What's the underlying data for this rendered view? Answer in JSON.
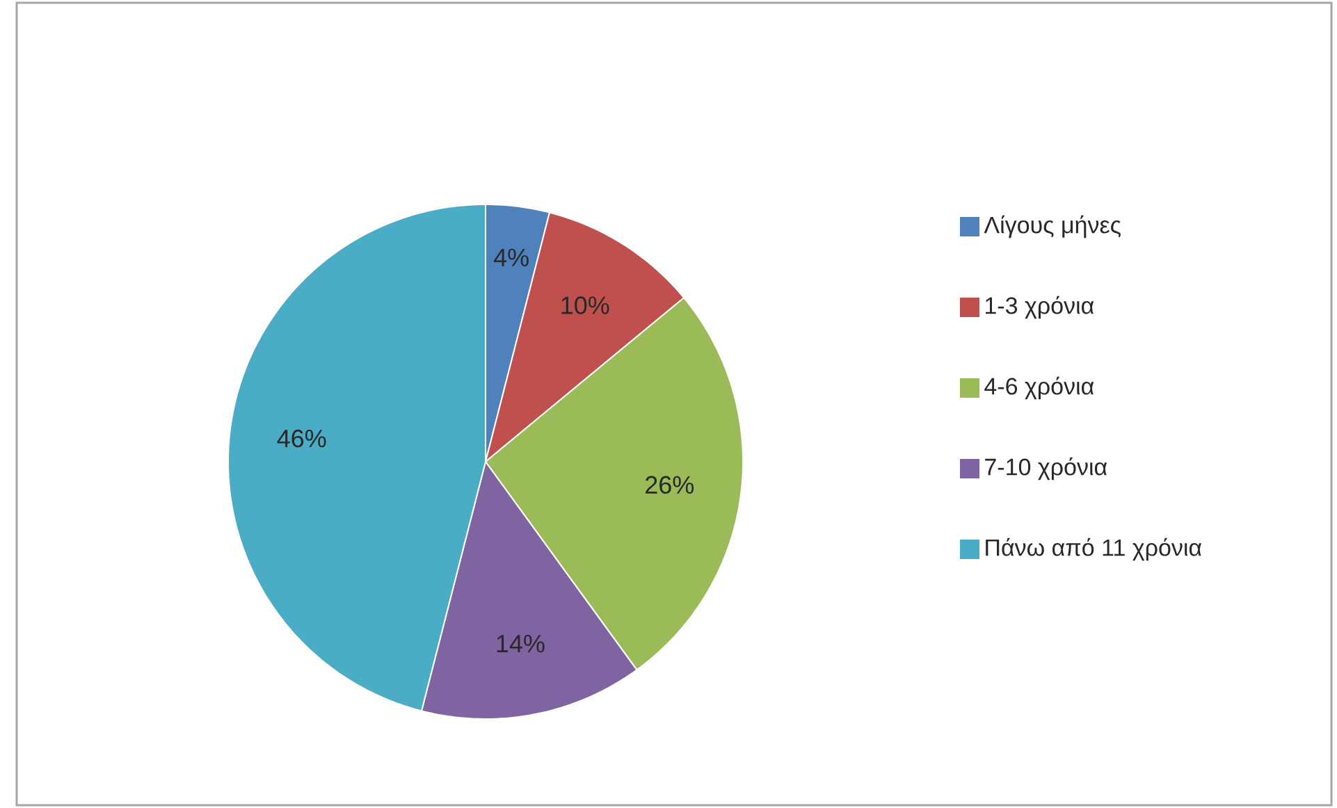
{
  "chart_data": {
    "type": "pie",
    "categories": [
      "Λίγους μήνες",
      "1-3 χρόνια",
      "4-6 χρόνια",
      "7-10 χρόνια",
      "Πάνω από 11 χρόνια"
    ],
    "values": [
      4,
      10,
      26,
      14,
      46
    ],
    "colors": [
      "#4f81bd",
      "#c0504d",
      "#9bbb59",
      "#8064a2",
      "#4bacc6"
    ],
    "value_labels": [
      "4%",
      "10%",
      "26%",
      "14%",
      "46%"
    ],
    "legend": "right"
  }
}
